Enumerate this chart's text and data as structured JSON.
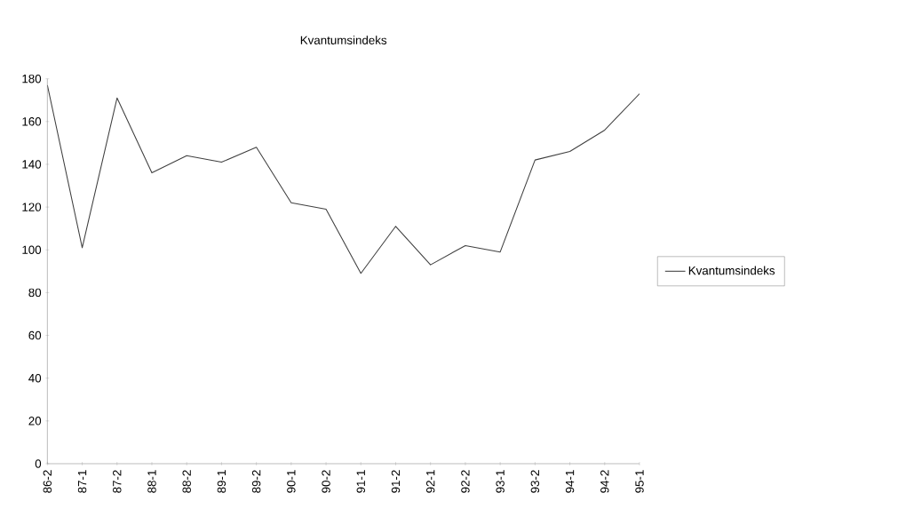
{
  "chart_data": {
    "type": "line",
    "title": "Kvantumsindeks",
    "categories": [
      "86-2",
      "87-1",
      "87-2",
      "88-1",
      "88-2",
      "89-1",
      "89-2",
      "90-1",
      "90-2",
      "91-1",
      "91-2",
      "92-1",
      "92-2",
      "93-1",
      "93-2",
      "94-1",
      "94-2",
      "95-1"
    ],
    "series": [
      {
        "name": "Kvantumsindeks",
        "color": "#404040",
        "values": [
          177,
          101,
          171,
          136,
          144,
          141,
          148,
          122,
          119,
          89,
          111,
          93,
          102,
          99,
          142,
          146,
          156,
          173
        ]
      }
    ],
    "ylim": [
      0,
      180
    ],
    "yticks": [
      0,
      20,
      40,
      60,
      80,
      100,
      120,
      140,
      160,
      180
    ],
    "grid": false,
    "legend": "right",
    "marker": "none",
    "line_style": "solid"
  }
}
